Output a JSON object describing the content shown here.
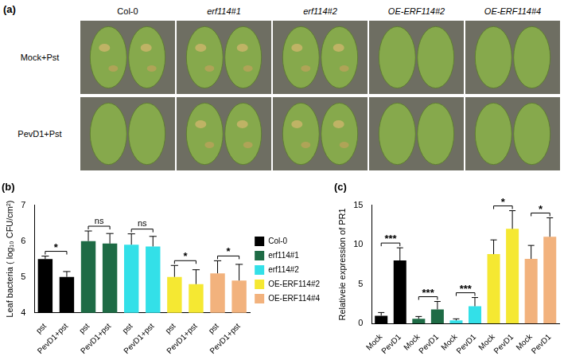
{
  "panel_a": {
    "label": "(a)",
    "columns": [
      "Col-0",
      "erf114#1",
      "erf114#2",
      "OE-ERF114#2",
      "OE-ERF114#4"
    ],
    "rows": [
      "Mock+Pst",
      "PevD1+Pst"
    ]
  },
  "chart_data": [
    {
      "type": "bar",
      "title": "(b)",
      "y_label": "Leaf bacteria ( log₁₀ CFU/cm²)",
      "categories": [
        "pst",
        "PevD1+pst",
        "pst",
        "PevD1+pst",
        "pst",
        "PevD1+pst",
        "pst",
        "PevD1+pst",
        "pst",
        "PevD1+pst"
      ],
      "series": [
        {
          "name": "Col-0",
          "color": "#000000",
          "values": [
            5.5,
            5.0,
            null,
            null,
            null,
            null,
            null,
            null,
            null,
            null
          ],
          "errors": [
            0.08,
            0.15,
            null,
            null,
            null,
            null,
            null,
            null,
            null,
            null
          ],
          "annotation": "*"
        },
        {
          "name": "erf114#1",
          "color": "#1e6b45",
          "values": [
            null,
            null,
            6.0,
            5.93,
            null,
            null,
            null,
            null,
            null,
            null
          ],
          "errors": [
            null,
            null,
            0.28,
            0.28,
            null,
            null,
            null,
            null,
            null,
            null
          ],
          "annotation": "ns"
        },
        {
          "name": "erf114#2",
          "color": "#33e0e8",
          "values": [
            null,
            null,
            null,
            null,
            5.9,
            5.85,
            null,
            null,
            null,
            null
          ],
          "errors": [
            null,
            null,
            null,
            null,
            0.3,
            0.28,
            null,
            null,
            null,
            null
          ],
          "annotation": "ns"
        },
        {
          "name": "OE-ERF114#2",
          "color": "#f5e832",
          "values": [
            null,
            null,
            null,
            null,
            null,
            null,
            5.0,
            4.8,
            null,
            null
          ],
          "errors": [
            null,
            null,
            null,
            null,
            null,
            null,
            0.32,
            0.4,
            null,
            null
          ],
          "annotation": "*"
        },
        {
          "name": "OE-ERF114#4",
          "color": "#f2b27d",
          "values": [
            null,
            null,
            null,
            null,
            null,
            null,
            null,
            null,
            5.1,
            4.9
          ],
          "errors": [
            null,
            null,
            null,
            null,
            null,
            null,
            null,
            null,
            0.35,
            0.45
          ],
          "annotation": "*"
        }
      ],
      "ylim": [
        4,
        7
      ],
      "yticks": [
        4,
        5,
        6,
        7
      ],
      "grid": false,
      "legend": "right"
    },
    {
      "type": "bar",
      "title": "(c)",
      "y_label": "Relativeie expression of PR1",
      "categories": [
        "Mock",
        "PevD1",
        "Mock",
        "PevD1",
        "Mock",
        "PevD1",
        "Mock",
        "PevD1",
        "Mock",
        "PevD1"
      ],
      "series": [
        {
          "name": "Col-0",
          "color": "#000000",
          "values": [
            1.0,
            8.0,
            null,
            null,
            null,
            null,
            null,
            null,
            null,
            null
          ],
          "errors": [
            0.4,
            1.6,
            null,
            null,
            null,
            null,
            null,
            null,
            null,
            null
          ],
          "annotation": "***"
        },
        {
          "name": "erf114#1",
          "color": "#1e6b45",
          "values": [
            null,
            null,
            0.6,
            1.8,
            null,
            null,
            null,
            null,
            null,
            null
          ],
          "errors": [
            null,
            null,
            0.3,
            1.0,
            null,
            null,
            null,
            null,
            null,
            null
          ],
          "annotation": "***"
        },
        {
          "name": "erf114#2",
          "color": "#33e0e8",
          "values": [
            null,
            null,
            null,
            null,
            0.4,
            2.2,
            null,
            null,
            null,
            null
          ],
          "errors": [
            null,
            null,
            null,
            null,
            0.2,
            1.1,
            null,
            null,
            null,
            null
          ],
          "annotation": "***"
        },
        {
          "name": "OE-ERF114#2",
          "color": "#f5e832",
          "values": [
            null,
            null,
            null,
            null,
            null,
            null,
            8.8,
            12.0,
            null,
            null
          ],
          "errors": [
            null,
            null,
            null,
            null,
            null,
            null,
            1.8,
            2.3,
            null,
            null
          ],
          "annotation": "*"
        },
        {
          "name": "OE-ERF114#4",
          "color": "#f2b27d",
          "values": [
            null,
            null,
            null,
            null,
            null,
            null,
            null,
            null,
            8.2,
            11.0
          ],
          "errors": [
            null,
            null,
            null,
            null,
            null,
            null,
            null,
            null,
            1.7,
            2.4
          ],
          "annotation": "*"
        }
      ],
      "ylim": [
        0,
        15
      ],
      "yticks": [
        0,
        5,
        10,
        15
      ],
      "grid": false
    }
  ]
}
